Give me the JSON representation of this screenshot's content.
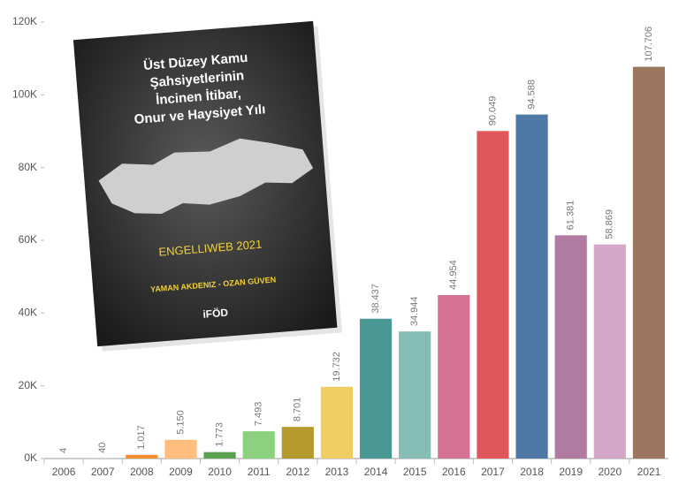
{
  "chart_data": {
    "type": "bar",
    "categories": [
      "2006",
      "2007",
      "2008",
      "2009",
      "2010",
      "2011",
      "2012",
      "2013",
      "2014",
      "2015",
      "2016",
      "2017",
      "2018",
      "2019",
      "2020",
      "2021"
    ],
    "values": [
      4,
      40,
      1017,
      5150,
      1773,
      7493,
      8701,
      19732,
      38437,
      34944,
      44954,
      90049,
      94588,
      61381,
      58869,
      107706
    ],
    "value_labels": [
      "4",
      "40",
      "1.017",
      "5.150",
      "1.773",
      "7.493",
      "8.701",
      "19.732",
      "38.437",
      "34.944",
      "44.954",
      "90.049",
      "94.588",
      "61.381",
      "58.869",
      "107.706"
    ],
    "colors": [
      "#4e79a7",
      "#a0cbe8",
      "#f28e2b",
      "#ffbe7d",
      "#59a14f",
      "#8cd17d",
      "#b6992d",
      "#f1ce63",
      "#499894",
      "#86bcb6",
      "#d37295",
      "#e15759",
      "#4e79a7",
      "#b07aa1",
      "#d4a6c8",
      "#9d7660"
    ],
    "ylim": [
      0,
      120000
    ],
    "yticks": [
      {
        "value": 0,
        "label": "0K"
      },
      {
        "value": 20000,
        "label": "20K"
      },
      {
        "value": 40000,
        "label": "40K"
      },
      {
        "value": 60000,
        "label": "60K"
      },
      {
        "value": 80000,
        "label": "80K"
      },
      {
        "value": 100000,
        "label": "100K"
      },
      {
        "value": 120000,
        "label": "120K"
      }
    ],
    "grid": false
  },
  "cover": {
    "title_lines": [
      "Üst Düzey Kamu",
      "Şahsiyetlerinin",
      "İncinen İtibar,",
      "Onur ve Haysiyet Yılı"
    ],
    "subtitle": "ENGELLIWEB 2021",
    "authors": "YAMAN AKDENIZ - OZAN GÜVEN",
    "logo": "iFÖD"
  }
}
